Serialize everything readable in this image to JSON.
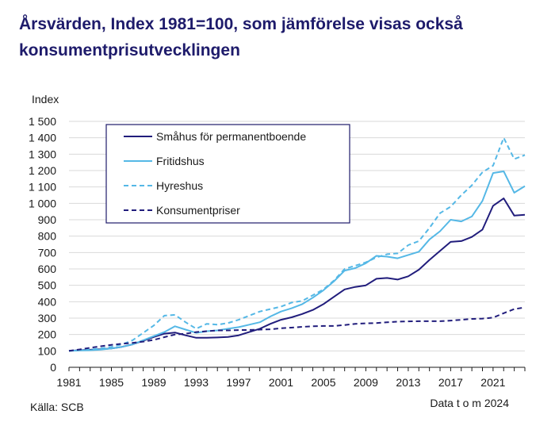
{
  "title": "Årsvärden, Index 1981=100, som jämförelse visas också konsumentprisutvecklingen",
  "source": "Källa: SCB",
  "note": "Data t o m 2024",
  "colors": {
    "title": "#1e1b6b",
    "dark": "#211d7c",
    "light": "#55b8e6",
    "grid": "#d9d9d9"
  },
  "chart_data": {
    "type": "line",
    "ylabel": "Index",
    "xlim": [
      1981,
      2024
    ],
    "ylim": [
      0,
      1500
    ],
    "xticks": [
      1981,
      1985,
      1989,
      1993,
      1997,
      2001,
      2005,
      2009,
      2013,
      2017,
      2021
    ],
    "yticks": [
      0,
      100,
      200,
      300,
      400,
      500,
      600,
      700,
      800,
      900,
      1000,
      1100,
      1200,
      1300,
      1400,
      1500
    ],
    "ytick_labels": [
      "0",
      "100",
      "200",
      "300",
      "400",
      "500",
      "600",
      "700",
      "800",
      "900",
      "1 000",
      "1 100",
      "1 200",
      "1 300",
      "1 400",
      "1 500"
    ],
    "grid": "horizontal",
    "legend_position": "top-left",
    "x": [
      1981,
      1982,
      1983,
      1984,
      1985,
      1986,
      1987,
      1988,
      1989,
      1990,
      1991,
      1992,
      1993,
      1994,
      1995,
      1996,
      1997,
      1998,
      1999,
      2000,
      2001,
      2002,
      2003,
      2004,
      2005,
      2006,
      2007,
      2008,
      2009,
      2010,
      2011,
      2012,
      2013,
      2014,
      2015,
      2016,
      2017,
      2018,
      2019,
      2020,
      2021,
      2022,
      2023,
      2024
    ],
    "series": [
      {
        "name": "Småhus för permanentboende",
        "style": "solid",
        "color": "#211d7c",
        "values": [
          100,
          104,
          107,
          110,
          115,
          125,
          140,
          162,
          185,
          205,
          212,
          195,
          180,
          180,
          182,
          185,
          195,
          215,
          235,
          265,
          290,
          305,
          325,
          350,
          385,
          430,
          475,
          490,
          500,
          540,
          545,
          535,
          555,
          595,
          655,
          710,
          765,
          770,
          795,
          840,
          985,
          1030,
          925,
          930
        ]
      },
      {
        "name": "Fritidshus",
        "style": "solid",
        "color": "#55b8e6",
        "values": [
          100,
          103,
          104,
          108,
          115,
          125,
          140,
          165,
          190,
          215,
          250,
          230,
          210,
          220,
          225,
          235,
          245,
          260,
          275,
          310,
          340,
          360,
          385,
          425,
          470,
          525,
          590,
          605,
          635,
          680,
          675,
          665,
          685,
          705,
          780,
          830,
          900,
          890,
          920,
          1015,
          1185,
          1195,
          1065,
          1105
        ]
      },
      {
        "name": "Hyreshus",
        "style": "dashed",
        "color": "#55b8e6",
        "values": [
          100,
          104,
          108,
          115,
          125,
          140,
          165,
          210,
          255,
          315,
          320,
          275,
          235,
          265,
          260,
          270,
          290,
          315,
          340,
          355,
          370,
          395,
          405,
          440,
          475,
          530,
          600,
          620,
          640,
          670,
          690,
          695,
          745,
          770,
          850,
          940,
          980,
          1050,
          1110,
          1190,
          1230,
          1400,
          1270,
          1295
        ]
      },
      {
        "name": "Konsumentpriser",
        "style": "dashed",
        "color": "#211d7c",
        "values": [
          100,
          109,
          119,
          128,
          137,
          143,
          149,
          157,
          167,
          184,
          200,
          205,
          215,
          220,
          225,
          225,
          227,
          228,
          230,
          232,
          238,
          242,
          247,
          250,
          252,
          252,
          258,
          265,
          268,
          270,
          275,
          278,
          280,
          281,
          281,
          281,
          285,
          290,
          295,
          297,
          303,
          330,
          355,
          365
        ]
      }
    ]
  }
}
